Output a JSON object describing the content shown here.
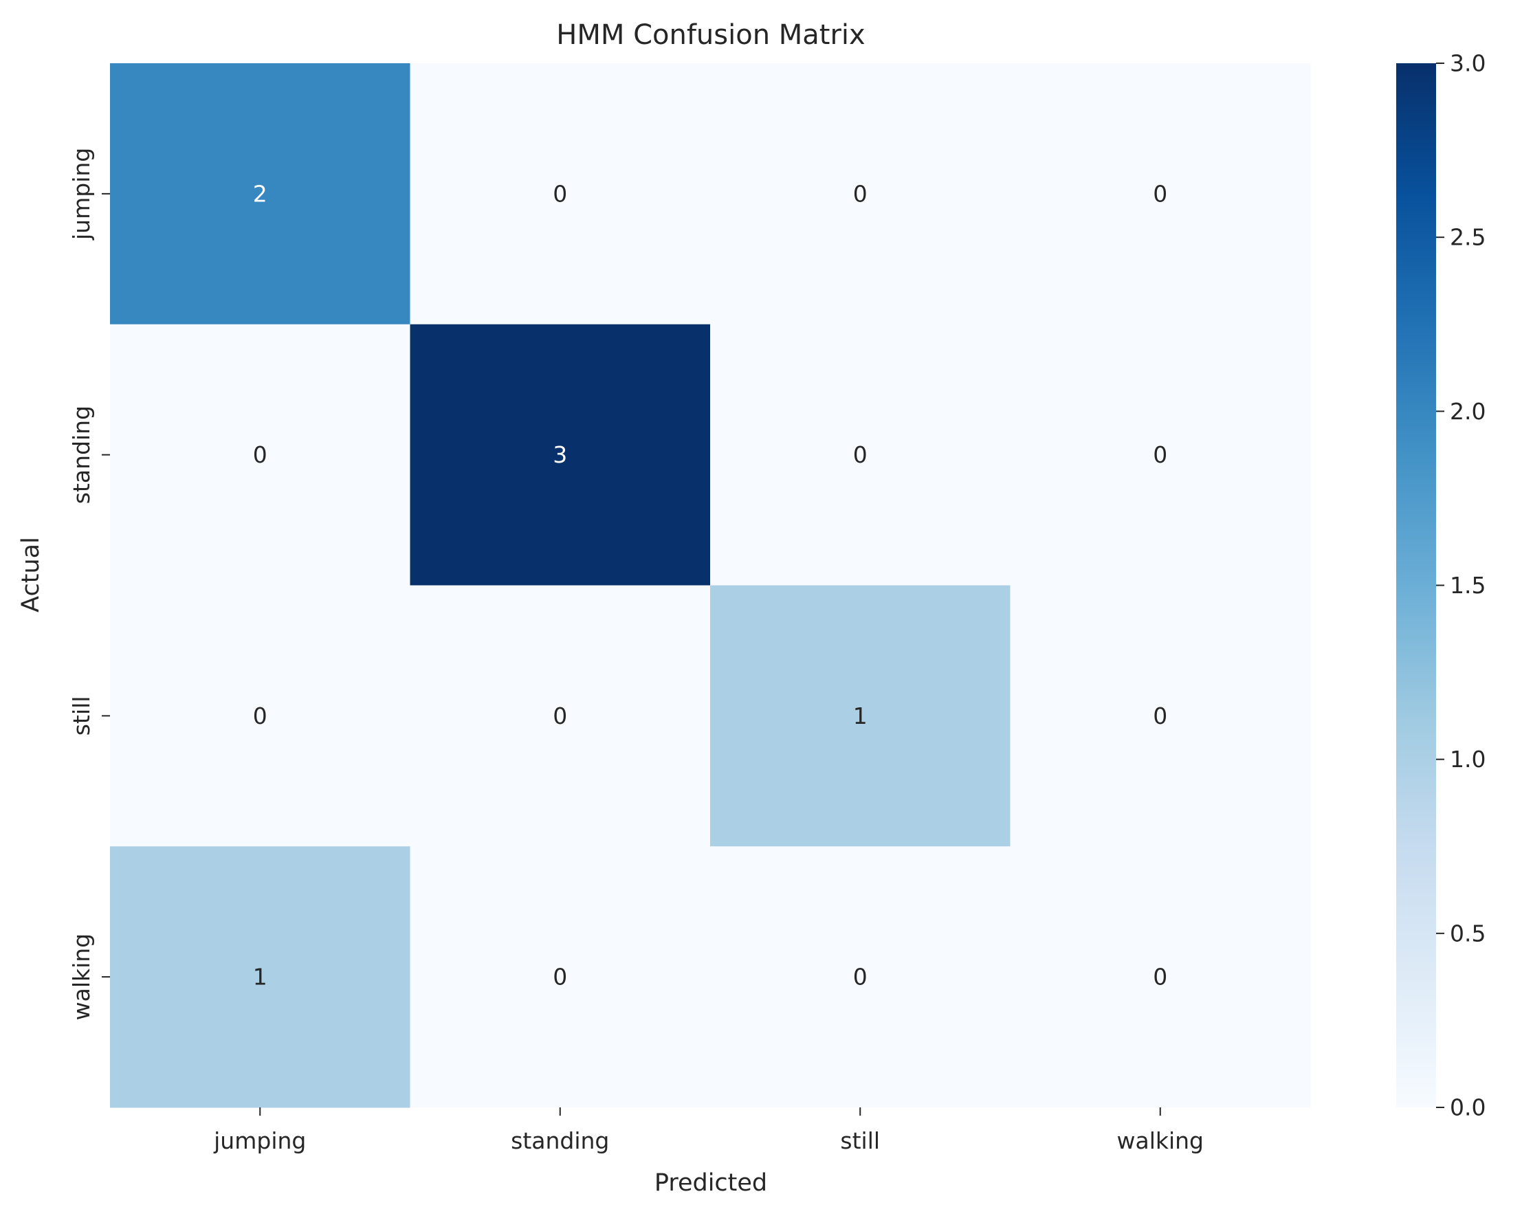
{
  "chart_data": {
    "type": "heatmap",
    "title": "HMM Confusion Matrix",
    "xlabel": "Predicted",
    "ylabel": "Actual",
    "x_categories": [
      "jumping",
      "standing",
      "still",
      "walking"
    ],
    "y_categories": [
      "jumping",
      "standing",
      "still",
      "walking"
    ],
    "values": [
      [
        2,
        0,
        0,
        0
      ],
      [
        0,
        3,
        0,
        0
      ],
      [
        0,
        0,
        1,
        0
      ],
      [
        1,
        0,
        0,
        0
      ]
    ],
    "annotations": true,
    "colormap": "Blues",
    "colorbar": {
      "range": [
        0,
        3
      ],
      "ticks": [
        0.0,
        0.5,
        1.0,
        1.5,
        2.0,
        2.5,
        3.0
      ],
      "tick_labels": [
        "0.0",
        "0.5",
        "1.0",
        "1.5",
        "2.0",
        "2.5",
        "3.0"
      ]
    },
    "grid": false
  }
}
